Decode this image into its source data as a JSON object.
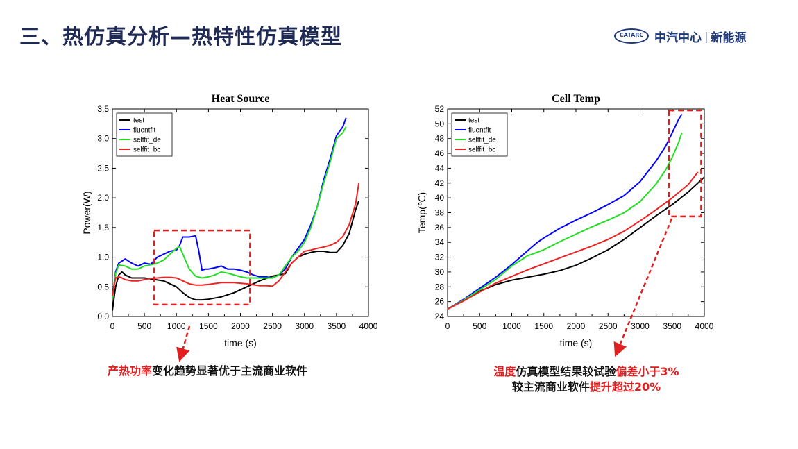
{
  "header": {
    "title": "三、热仿真分析—热特性仿真模型",
    "logo_text": "CATARC",
    "brand_name": "中汽中心",
    "brand_sep": "|",
    "brand_sub": "新能源"
  },
  "colors": {
    "test": "#000000",
    "fluentfit": "#0000ff",
    "selffit_de": "#22dd22",
    "selffit_bc": "#ee2222",
    "highlight": "#e02020"
  },
  "captions": {
    "left": [
      {
        "text": "产热功率",
        "red": true
      },
      {
        "text": "变化趋势显著优于主流商业软件",
        "red": false
      }
    ],
    "right_line1": [
      {
        "text": "温度",
        "red": true
      },
      {
        "text": "仿真模型结果较试验",
        "red": false
      },
      {
        "text": "偏差小于3%",
        "red": true
      }
    ],
    "right_line2": [
      {
        "text": "较主流商业软件",
        "red": false
      },
      {
        "text": "提升超过20%",
        "red": true
      }
    ]
  },
  "chart_data": [
    {
      "type": "line",
      "title": "Heat Source",
      "xlabel": "time (s)",
      "ylabel": "Power(W)",
      "xlim": [
        0,
        4000
      ],
      "ylim": [
        0,
        3.5
      ],
      "xticks": [
        0,
        500,
        1000,
        1500,
        2000,
        2500,
        3000,
        3500,
        4000
      ],
      "yticks": [
        0.0,
        0.5,
        1.0,
        1.5,
        2.0,
        2.5,
        3.0,
        3.5
      ],
      "ytick_labels": [
        "0.0",
        "0.5",
        "1.0",
        "1.5",
        "2.0",
        "2.5",
        "3.0",
        "3.5"
      ],
      "legend_position": "top-left",
      "series": [
        {
          "name": "test",
          "color": "#000000",
          "x": [
            0,
            50,
            100,
            150,
            200,
            300,
            500,
            800,
            1000,
            1100,
            1200,
            1300,
            1400,
            1500,
            1700,
            1900,
            2100,
            2300,
            2500,
            2600,
            2700,
            2800,
            2900,
            3000,
            3100,
            3200,
            3300,
            3400,
            3500,
            3600,
            3700,
            3750,
            3800,
            3850
          ],
          "y": [
            0.1,
            0.5,
            0.7,
            0.75,
            0.7,
            0.65,
            0.65,
            0.6,
            0.5,
            0.4,
            0.32,
            0.28,
            0.28,
            0.29,
            0.33,
            0.4,
            0.5,
            0.6,
            0.68,
            0.7,
            0.72,
            0.9,
            1.0,
            1.05,
            1.08,
            1.1,
            1.1,
            1.08,
            1.08,
            1.2,
            1.4,
            1.6,
            1.8,
            1.95
          ]
        },
        {
          "name": "fluentfit",
          "color": "#0000ff",
          "x": [
            0,
            50,
            100,
            200,
            300,
            400,
            500,
            600,
            700,
            800,
            900,
            1000,
            1050,
            1100,
            1200,
            1300,
            1350,
            1400,
            1450,
            1500,
            1600,
            1700,
            1800,
            1900,
            2000,
            2100,
            2200,
            2300,
            2400,
            2500,
            2600,
            2700,
            2800,
            2900,
            3000,
            3100,
            3200,
            3300,
            3400,
            3500,
            3600,
            3650
          ],
          "y": [
            0.3,
            0.75,
            0.9,
            0.97,
            0.9,
            0.85,
            0.9,
            0.88,
            1.0,
            1.05,
            1.1,
            1.12,
            1.2,
            1.34,
            1.34,
            1.36,
            1.1,
            0.78,
            0.8,
            0.8,
            0.82,
            0.85,
            0.8,
            0.8,
            0.78,
            0.75,
            0.7,
            0.67,
            0.67,
            0.65,
            0.7,
            0.8,
            1.0,
            1.15,
            1.3,
            1.55,
            1.85,
            2.3,
            2.65,
            3.05,
            3.2,
            3.35
          ]
        },
        {
          "name": "selffit_de",
          "color": "#22dd22",
          "x": [
            0,
            50,
            100,
            200,
            300,
            400,
            500,
            600,
            700,
            800,
            900,
            1000,
            1050,
            1100,
            1200,
            1300,
            1400,
            1500,
            1600,
            1700,
            1800,
            1900,
            2000,
            2100,
            2200,
            2300,
            2400,
            2500,
            2600,
            2700,
            2800,
            2900,
            3000,
            3100,
            3200,
            3300,
            3400,
            3500,
            3600,
            3650
          ],
          "y": [
            0.3,
            0.72,
            0.87,
            0.85,
            0.8,
            0.8,
            0.85,
            0.87,
            0.9,
            0.95,
            1.05,
            1.15,
            1.18,
            1.05,
            0.8,
            0.68,
            0.65,
            0.67,
            0.7,
            0.75,
            0.73,
            0.7,
            0.67,
            0.65,
            0.65,
            0.65,
            0.65,
            0.65,
            0.7,
            0.85,
            1.0,
            1.1,
            1.25,
            1.5,
            1.85,
            2.25,
            2.6,
            3.0,
            3.1,
            3.2
          ]
        },
        {
          "name": "selffit_bc",
          "color": "#ee2222",
          "x": [
            0,
            50,
            100,
            150,
            200,
            300,
            400,
            500,
            600,
            700,
            800,
            900,
            1000,
            1100,
            1200,
            1300,
            1400,
            1500,
            1700,
            1900,
            2100,
            2300,
            2400,
            2500,
            2600,
            2700,
            2800,
            2900,
            3000,
            3100,
            3200,
            3300,
            3400,
            3500,
            3600,
            3700,
            3800,
            3850
          ],
          "y": [
            0.35,
            0.65,
            0.67,
            0.65,
            0.62,
            0.6,
            0.6,
            0.62,
            0.64,
            0.65,
            0.66,
            0.66,
            0.65,
            0.6,
            0.55,
            0.53,
            0.53,
            0.54,
            0.57,
            0.57,
            0.55,
            0.52,
            0.52,
            0.51,
            0.6,
            0.75,
            0.9,
            1.0,
            1.1,
            1.12,
            1.15,
            1.17,
            1.2,
            1.25,
            1.35,
            1.55,
            1.9,
            2.25
          ]
        }
      ],
      "annotation_box": {
        "x": [
          650,
          2150
        ],
        "y": [
          0.2,
          1.45
        ]
      }
    },
    {
      "type": "line",
      "title": "Cell Temp",
      "xlabel": "time (s)",
      "ylabel": "Temp(℃)",
      "xlim": [
        0,
        4000
      ],
      "ylim": [
        24,
        52
      ],
      "xticks": [
        0,
        500,
        1000,
        1500,
        2000,
        2500,
        3000,
        3500,
        4000
      ],
      "yticks": [
        24,
        26,
        28,
        30,
        32,
        34,
        36,
        38,
        40,
        42,
        44,
        46,
        48,
        50,
        52
      ],
      "ytick_labels": [
        "24",
        "26",
        "28",
        "30",
        "32",
        "34",
        "36",
        "38",
        "40",
        "42",
        "44",
        "46",
        "48",
        "50",
        "52"
      ],
      "legend_position": "top-left",
      "series": [
        {
          "name": "test",
          "color": "#000000",
          "x": [
            0,
            250,
            500,
            750,
            1000,
            1250,
            1500,
            1750,
            2000,
            2250,
            2500,
            2750,
            3000,
            3250,
            3500,
            3750,
            4000
          ],
          "y": [
            25,
            26.2,
            27.4,
            28.3,
            28.9,
            29.3,
            29.7,
            30.2,
            30.9,
            31.9,
            33,
            34.4,
            36,
            37.6,
            39.1,
            40.8,
            42.8
          ]
        },
        {
          "name": "fluentfit",
          "color": "#0000ff",
          "x": [
            0,
            250,
            500,
            750,
            1000,
            1250,
            1400,
            1500,
            1750,
            2000,
            2250,
            2500,
            2750,
            3000,
            3250,
            3400,
            3500,
            3600,
            3650
          ],
          "y": [
            25,
            26.3,
            27.8,
            29.3,
            31,
            32.9,
            34,
            34.6,
            35.9,
            37,
            38,
            39.1,
            40.3,
            42.2,
            45,
            47,
            48.8,
            50.6,
            51.3
          ]
        },
        {
          "name": "selffit_de",
          "color": "#22dd22",
          "x": [
            0,
            250,
            500,
            750,
            1000,
            1250,
            1500,
            1750,
            2000,
            2250,
            2500,
            2750,
            3000,
            3250,
            3400,
            3500,
            3600,
            3650
          ],
          "y": [
            25,
            26.2,
            27.6,
            29,
            30.8,
            32.2,
            33,
            34.1,
            35.1,
            36.1,
            37,
            38,
            39.5,
            41.9,
            43.8,
            45.5,
            47.5,
            48.8
          ]
        },
        {
          "name": "selffit_bc",
          "color": "#ee2222",
          "x": [
            0,
            250,
            500,
            750,
            1000,
            1250,
            1500,
            1750,
            2000,
            2250,
            2500,
            2750,
            3000,
            3250,
            3500,
            3750,
            3900
          ],
          "y": [
            25,
            26.1,
            27.3,
            28.5,
            29.4,
            30.3,
            31.1,
            31.9,
            32.7,
            33.5,
            34.4,
            35.5,
            36.9,
            38.4,
            40,
            41.8,
            43.5
          ]
        }
      ],
      "annotation_box": {
        "x": [
          3450,
          3950
        ],
        "y": [
          37.5,
          51.8
        ]
      }
    }
  ]
}
